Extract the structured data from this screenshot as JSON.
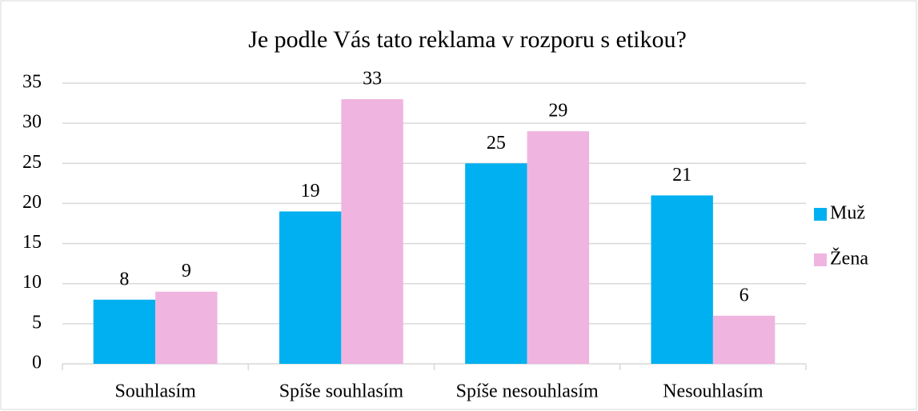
{
  "chart_data": {
    "type": "bar",
    "title": "Je podle Vás tato reklama v rozporu s etikou?",
    "categories": [
      "Souhlasím",
      "Spíše souhlasím",
      "Spíše nesouhlasím",
      "Nesouhlasím"
    ],
    "series": [
      {
        "name": "Muž",
        "color": "#00b0f0",
        "values": [
          8,
          19,
          25,
          21
        ]
      },
      {
        "name": "Žena",
        "color": "#f0b4e0",
        "values": [
          9,
          33,
          29,
          6
        ]
      }
    ],
    "ylim": [
      0,
      35
    ],
    "yticks": [
      0,
      5,
      10,
      15,
      20,
      25,
      30,
      35
    ],
    "grid": true,
    "legend": "right"
  }
}
